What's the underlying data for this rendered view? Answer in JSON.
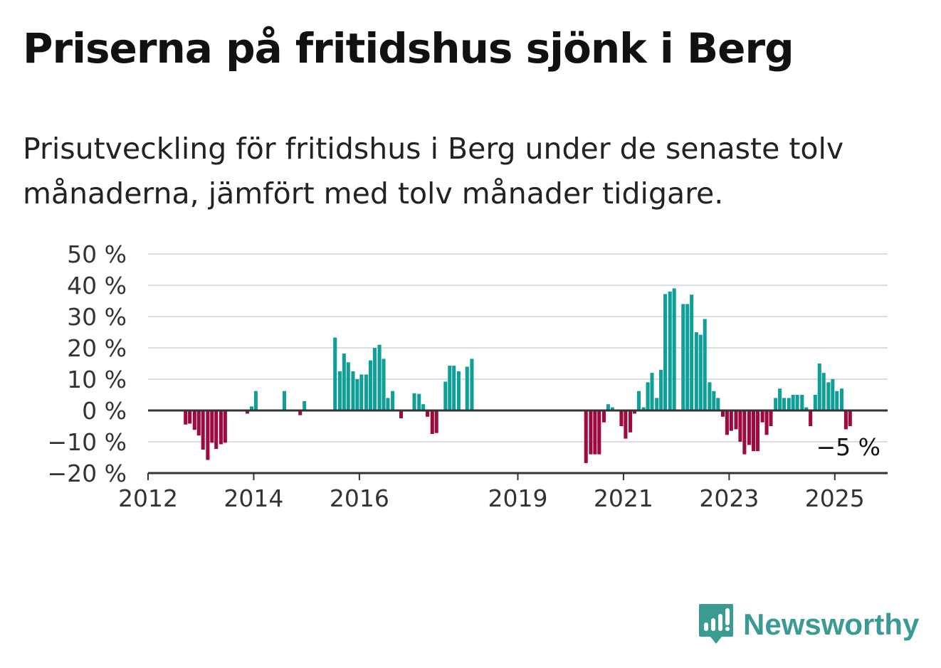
{
  "title": "Priserna på fritidshus sjönk i Berg",
  "subtitle": "Prisutveckling för fritidshus i Berg under de senaste tolv månaderna, jämfört med tolv månader tidigare.",
  "brand": {
    "name": "Newsworthy",
    "icon": "newsworthy-logo-icon",
    "color": "#3a9a94"
  },
  "colors": {
    "positive": "#109e98",
    "negative": "#9c0a3f",
    "grid": "#dddddd",
    "axis": "#333333"
  },
  "chart_data": {
    "type": "bar",
    "ylim": [
      -20,
      50
    ],
    "yticks": [
      50,
      40,
      30,
      20,
      10,
      0,
      -10,
      -20
    ],
    "ytick_labels": [
      "50 %",
      "40 %",
      "30 %",
      "20 %",
      "10 %",
      "0 %",
      "−10 %",
      "−20 %"
    ],
    "x_start": 2012.0,
    "x_end": 2026.0,
    "xticks": [
      2012,
      2014,
      2016,
      2019,
      2021,
      2023,
      2025
    ],
    "xtick_labels": [
      "2012",
      "2014",
      "2016",
      "2019",
      "2021",
      "2023",
      "2025"
    ],
    "grid": true,
    "end_label": "−5 %",
    "series": [
      {
        "values": [
          [
            2012.71,
            -4.5
          ],
          [
            2012.79,
            -4.2
          ],
          [
            2012.88,
            -6.2
          ],
          [
            2012.96,
            -8.0
          ],
          [
            2013.04,
            -12.5
          ],
          [
            2013.13,
            -15.8
          ],
          [
            2013.21,
            -10.3
          ],
          [
            2013.29,
            -12.3
          ],
          [
            2013.38,
            -10.8
          ],
          [
            2013.46,
            -10.3
          ],
          [
            2013.88,
            -1.0
          ],
          [
            2013.96,
            1.3
          ],
          [
            2014.04,
            6.2
          ],
          [
            2014.58,
            6.2
          ],
          [
            2014.88,
            -1.5
          ],
          [
            2014.96,
            3.0
          ],
          [
            2015.54,
            23.3
          ],
          [
            2015.63,
            12.5
          ],
          [
            2015.71,
            18.2
          ],
          [
            2015.79,
            15.4
          ],
          [
            2015.88,
            12.5
          ],
          [
            2015.96,
            10.0
          ],
          [
            2016.04,
            11.5
          ],
          [
            2016.13,
            11.5
          ],
          [
            2016.21,
            16.0
          ],
          [
            2016.29,
            20.0
          ],
          [
            2016.38,
            21.0
          ],
          [
            2016.46,
            16.5
          ],
          [
            2016.54,
            4.0
          ],
          [
            2016.63,
            6.2
          ],
          [
            2016.79,
            -2.5
          ],
          [
            2017.04,
            5.5
          ],
          [
            2017.13,
            5.3
          ],
          [
            2017.21,
            2.0
          ],
          [
            2017.29,
            -2.0
          ],
          [
            2017.38,
            -7.5
          ],
          [
            2017.46,
            -7.2
          ],
          [
            2017.63,
            9.2
          ],
          [
            2017.71,
            14.3
          ],
          [
            2017.79,
            14.3
          ],
          [
            2017.88,
            12.5
          ],
          [
            2018.04,
            14.0
          ],
          [
            2018.13,
            16.5
          ],
          [
            2020.29,
            -16.8
          ],
          [
            2020.38,
            -14.0
          ],
          [
            2020.46,
            -14.0
          ],
          [
            2020.54,
            -14.0
          ],
          [
            2020.63,
            -3.8
          ],
          [
            2020.71,
            2.0
          ],
          [
            2020.79,
            1.0
          ],
          [
            2020.96,
            -5.0
          ],
          [
            2021.04,
            -9.0
          ],
          [
            2021.13,
            -7.0
          ],
          [
            2021.21,
            -1.0
          ],
          [
            2021.29,
            6.2
          ],
          [
            2021.38,
            1.0
          ],
          [
            2021.46,
            9.0
          ],
          [
            2021.54,
            12.0
          ],
          [
            2021.63,
            4.0
          ],
          [
            2021.71,
            13.0
          ],
          [
            2021.79,
            37.2
          ],
          [
            2021.88,
            38.0
          ],
          [
            2021.96,
            39.0
          ],
          [
            2022.13,
            34.0
          ],
          [
            2022.21,
            34.0
          ],
          [
            2022.29,
            37.0
          ],
          [
            2022.38,
            25.0
          ],
          [
            2022.46,
            24.2
          ],
          [
            2022.54,
            29.2
          ],
          [
            2022.63,
            9.0
          ],
          [
            2022.71,
            6.2
          ],
          [
            2022.79,
            4.0
          ],
          [
            2022.88,
            -2.0
          ],
          [
            2022.96,
            -7.8
          ],
          [
            2023.04,
            -6.5
          ],
          [
            2023.13,
            -6.0
          ],
          [
            2023.21,
            -10.0
          ],
          [
            2023.29,
            -14.0
          ],
          [
            2023.38,
            -11.0
          ],
          [
            2023.46,
            -13.0
          ],
          [
            2023.54,
            -13.0
          ],
          [
            2023.63,
            -3.8
          ],
          [
            2023.71,
            -7.8
          ],
          [
            2023.79,
            -5.0
          ],
          [
            2023.88,
            4.0
          ],
          [
            2023.96,
            7.0
          ],
          [
            2024.04,
            4.0
          ],
          [
            2024.13,
            4.0
          ],
          [
            2024.21,
            5.0
          ],
          [
            2024.29,
            5.0
          ],
          [
            2024.38,
            5.0
          ],
          [
            2024.46,
            1.0
          ],
          [
            2024.54,
            -5.0
          ],
          [
            2024.63,
            5.0
          ],
          [
            2024.71,
            15.0
          ],
          [
            2024.79,
            12.0
          ],
          [
            2024.88,
            9.0
          ],
          [
            2024.96,
            10.0
          ],
          [
            2025.04,
            6.2
          ],
          [
            2025.13,
            7.0
          ],
          [
            2025.21,
            -6.0
          ],
          [
            2025.29,
            -5.0
          ]
        ]
      }
    ]
  }
}
